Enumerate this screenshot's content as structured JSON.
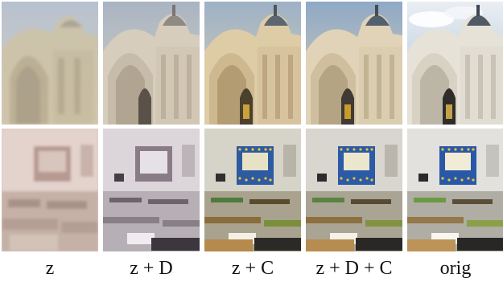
{
  "figure": {
    "columns": [
      {
        "label": "z",
        "variant": "blurry-pale"
      },
      {
        "label": "z + D",
        "variant": "sharp-muted"
      },
      {
        "label": "z + C",
        "variant": "warm-color"
      },
      {
        "label": "z + D + C",
        "variant": "sharp-color"
      },
      {
        "label": "orig",
        "variant": "original"
      }
    ],
    "rows": [
      {
        "subject": "ornate stone building facade with arched doorway and dome"
      },
      {
        "subject": "classroom with desks, chairs and a blue-framed bulletin board"
      }
    ]
  }
}
